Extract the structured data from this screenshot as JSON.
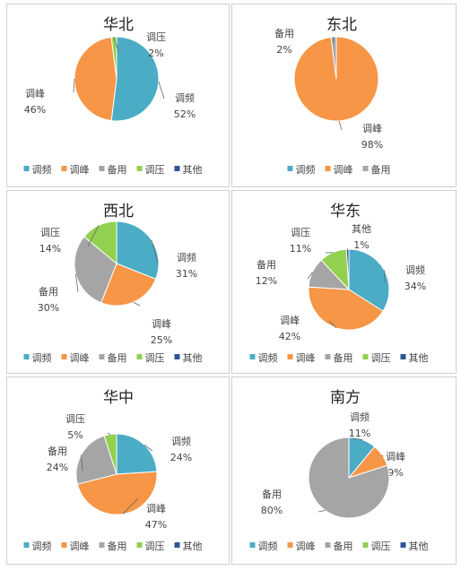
{
  "colors": {
    "调频": "#4bacc6",
    "调峰": "#f79646",
    "备用": "#a5a5a5",
    "调压": "#92d050",
    "其他": "#2f5597"
  },
  "chart_data": [
    {
      "type": "pie",
      "title": "华北",
      "legend": [
        "调频",
        "调峰",
        "备用",
        "调压",
        "其他"
      ],
      "slices": [
        {
          "name": "调频",
          "value": 52,
          "label": "52%"
        },
        {
          "name": "调峰",
          "value": 46,
          "label": "46%"
        },
        {
          "name": "调压",
          "value": 2,
          "label": "2%"
        }
      ]
    },
    {
      "type": "pie",
      "title": "东北",
      "legend": [
        "调频",
        "调峰",
        "备用"
      ],
      "slices": [
        {
          "name": "调峰",
          "value": 98,
          "label": "98%"
        },
        {
          "name": "备用",
          "value": 2,
          "label": "2%"
        }
      ]
    },
    {
      "type": "pie",
      "title": "西北",
      "legend": [
        "调频",
        "调峰",
        "备用",
        "调压",
        "其他"
      ],
      "slices": [
        {
          "name": "调频",
          "value": 31,
          "label": "31%"
        },
        {
          "name": "调峰",
          "value": 25,
          "label": "25%"
        },
        {
          "name": "备用",
          "value": 30,
          "label": "30%"
        },
        {
          "name": "调压",
          "value": 14,
          "label": "14%"
        }
      ]
    },
    {
      "type": "pie",
      "title": "华东",
      "legend": [
        "调频",
        "调峰",
        "备用",
        "调压",
        "其他"
      ],
      "slices": [
        {
          "name": "调频",
          "value": 34,
          "label": "34%"
        },
        {
          "name": "调峰",
          "value": 42,
          "label": "42%"
        },
        {
          "name": "备用",
          "value": 12,
          "label": "12%"
        },
        {
          "name": "调压",
          "value": 11,
          "label": "11%"
        },
        {
          "name": "其他",
          "value": 1,
          "label": "1%"
        }
      ]
    },
    {
      "type": "pie",
      "title": "华中",
      "legend": [
        "调频",
        "调峰",
        "备用",
        "调压",
        "其他"
      ],
      "slices": [
        {
          "name": "调频",
          "value": 24,
          "label": "24%"
        },
        {
          "name": "调峰",
          "value": 47,
          "label": "47%"
        },
        {
          "name": "备用",
          "value": 24,
          "label": "24%"
        },
        {
          "name": "调压",
          "value": 5,
          "label": "5%"
        }
      ]
    },
    {
      "type": "pie",
      "title": "南方",
      "legend": [
        "调频",
        "调峰",
        "备用",
        "调压",
        "其他"
      ],
      "slices": [
        {
          "name": "调频",
          "value": 11,
          "label": "11%"
        },
        {
          "name": "调峰",
          "value": 9,
          "label": "9%"
        },
        {
          "name": "备用",
          "value": 80,
          "label": "80%"
        }
      ]
    }
  ]
}
